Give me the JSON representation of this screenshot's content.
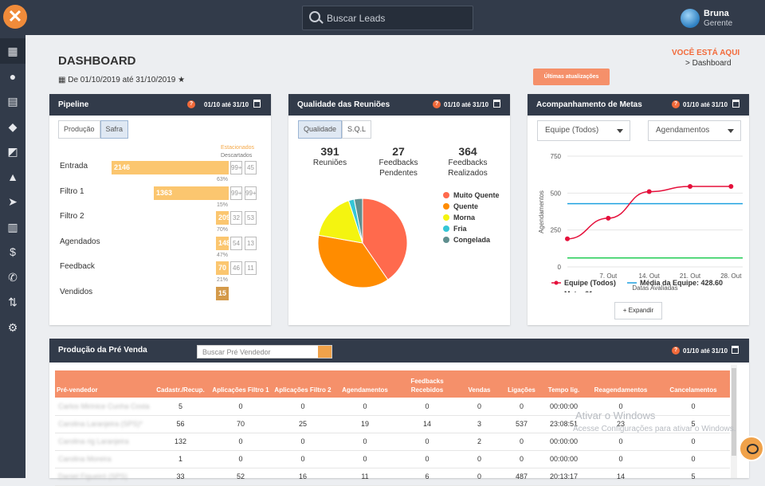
{
  "header": {
    "logo": "✕",
    "search_placeholder": "Buscar Leads",
    "user_name": "Bruna",
    "user_role": "Gerente"
  },
  "sidebar": {
    "icons": [
      "dashboard-icon",
      "user-icon",
      "clipboard-icon",
      "users-icon",
      "tags-icon",
      "bell-icon",
      "send-icon",
      "report-icon",
      "dollar-icon",
      "phone-icon",
      "route-icon",
      "gear-icon"
    ],
    "glyphs": [
      "▦",
      "●",
      "▤",
      "◆",
      "◩",
      "▲",
      "➤",
      "▥",
      "$",
      "✆",
      "⇅",
      "⚙"
    ]
  },
  "page": {
    "title": "DASHBOARD",
    "date_range": "De 01/10/2019 até 31/10/2019",
    "star": "★",
    "breadcrumb_title": "VOCÊ ESTÁ AQUI",
    "breadcrumb_item": "> Dashboard",
    "updates_button": "Últimas atualizações"
  },
  "pipeline": {
    "title": "Pipeline",
    "range": "01/10 até 31/10",
    "help": "?",
    "tabs": [
      "Produção",
      "Safra"
    ],
    "legend_top": "Estacionados",
    "legend_bottom": "Descartados",
    "rows": [
      {
        "label": "Entrada",
        "value": "2146",
        "box1": "99+",
        "box2": "45",
        "pct": "63%",
        "width_frac": 1.0
      },
      {
        "label": "Filtro 1",
        "value": "1363",
        "box1": "99+",
        "box2": "99+",
        "pct": "15%",
        "width_frac": 0.64
      },
      {
        "label": "Filtro 2",
        "value": "209",
        "box1": "32",
        "box2": "53",
        "pct": "70%",
        "width_frac": 0.1
      },
      {
        "label": "Agendados",
        "value": "148",
        "box1": "54",
        "box2": "13",
        "pct": "47%",
        "width_frac": 0.07
      },
      {
        "label": "Feedback",
        "value": "70",
        "box1": "46",
        "box2": "11",
        "pct": "21%",
        "width_frac": 0.03
      },
      {
        "label": "Vendidos",
        "value": "15",
        "box1": "",
        "box2": "",
        "pct": "",
        "width_frac": 0.01
      }
    ]
  },
  "reunioes": {
    "title": "Qualidade das Reuniões",
    "range": "01/10 até 31/10",
    "help": "?",
    "tabs": [
      "Qualidade",
      "S.Q.L"
    ],
    "stats": [
      {
        "value": "391",
        "label1": "Reuniões",
        "label2": ""
      },
      {
        "value": "27",
        "label1": "Feedbacks",
        "label2": "Pendentes"
      },
      {
        "value": "364",
        "label1": "Feedbacks",
        "label2": "Realizados"
      }
    ],
    "chart_data": {
      "type": "pie",
      "slices": [
        {
          "name": "Muito Quente",
          "value": 40,
          "color": "#ff6a4d"
        },
        {
          "name": "Quente",
          "value": 37,
          "color": "#ff8c00"
        },
        {
          "name": "Morna",
          "value": 17,
          "color": "#f4f410"
        },
        {
          "name": "Fria",
          "value": 2,
          "color": "#35c6d6"
        },
        {
          "name": "Congelada",
          "value": 3,
          "color": "#5f8f8f"
        }
      ]
    }
  },
  "metas": {
    "title": "Acompanhamento de Metas",
    "range": "01/10 até 31/10",
    "help": "?",
    "select1": "Equipe (Todos)",
    "select2": "Agendamentos",
    "expand_label": "+ Expandir",
    "chart_data": {
      "type": "line",
      "x": [
        "7. Out",
        "14. Out",
        "21. Out",
        "28. Out"
      ],
      "xlabel": "Datas Avaliadas",
      "ylabel": "Agendamentos",
      "yticks": [
        "750",
        "500",
        "250",
        "0"
      ],
      "ylim": [
        0,
        750
      ],
      "series": [
        {
          "name": "Equipe (Todos)",
          "color": "#e5103b",
          "points": [
            [
              0,
              190
            ],
            [
              7,
              330
            ],
            [
              14,
              510
            ],
            [
              21,
              545
            ],
            [
              28,
              545
            ]
          ]
        },
        {
          "name": "Média da Equipe: 428.60",
          "color": "#1ea1e0",
          "value": 428.6
        },
        {
          "name": "Meta: 61",
          "color": "#22cc55",
          "value": 61
        }
      ],
      "x_start_day": 0,
      "x_end_day": 30
    }
  },
  "producao": {
    "title": "Produção da Pré Venda",
    "search_placeholder": "Buscar Pré Vendedor",
    "range": "01/10 até 31/10",
    "help": "?",
    "columns": [
      "Pré-vendedor",
      "Cadastr./Recup.",
      "Aplicações Filtro 1",
      "Aplicações Filtro 2",
      "Agendamentos",
      "Feedbacks Recebidos",
      "Vendas",
      "Ligações",
      "Tempo lig.",
      "Reagendamentos",
      "Cancelamentos"
    ],
    "rows": [
      [
        "Carlos Mirinice Cunha Costa",
        "5",
        "0",
        "0",
        "0",
        "0",
        "0",
        "0",
        "00:00:00",
        "0",
        "0"
      ],
      [
        "Carolina Laranjeira (SPS)*",
        "56",
        "70",
        "25",
        "19",
        "14",
        "3",
        "537",
        "23:08:51",
        "23",
        "5"
      ],
      [
        "Carolina rig Laranjeira",
        "132",
        "0",
        "0",
        "0",
        "0",
        "2",
        "0",
        "00:00:00",
        "0",
        "0"
      ],
      [
        "Carolina Moreira",
        "1",
        "0",
        "0",
        "0",
        "0",
        "0",
        "0",
        "00:00:00",
        "0",
        "0"
      ],
      [
        "Daniel Figueiró (SPS)",
        "33",
        "52",
        "16",
        "11",
        "6",
        "0",
        "487",
        "20:13:17",
        "14",
        "5"
      ]
    ]
  },
  "watermark": {
    "line1": "Ativar o Windows",
    "line2": "Acesse Configurações para ativar o Windows."
  }
}
